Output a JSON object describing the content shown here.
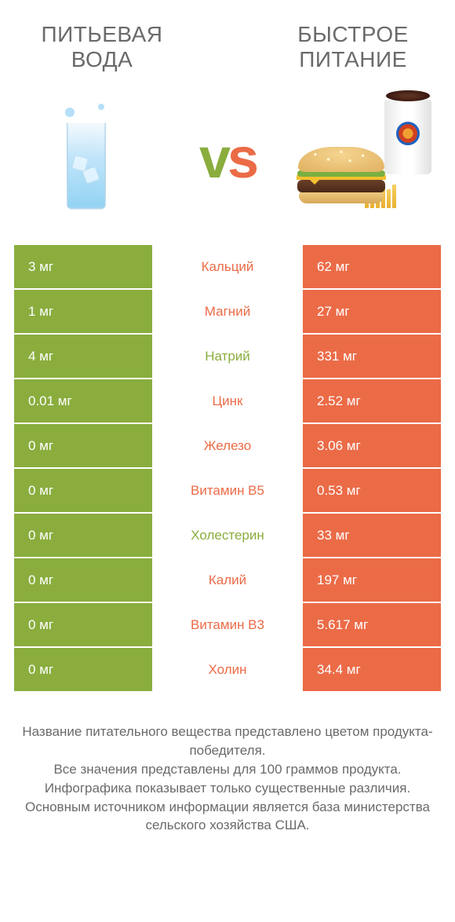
{
  "colors": {
    "green": "#8aad3e",
    "orange": "#eb6b47",
    "text_gray": "#6a6a6a",
    "row_gap": "#ffffff"
  },
  "header": {
    "left_title": "ПИТЬЕВАЯ ВОДА",
    "right_title": "БЫСТРОЕ ПИТАНИЕ",
    "vs_label": "vs"
  },
  "table": {
    "rows": [
      {
        "left": "3 мг",
        "label": "Кальций",
        "right": "62 мг",
        "winner": "right"
      },
      {
        "left": "1 мг",
        "label": "Магний",
        "right": "27 мг",
        "winner": "right"
      },
      {
        "left": "4 мг",
        "label": "Натрий",
        "right": "331 мг",
        "winner": "left"
      },
      {
        "left": "0.01 мг",
        "label": "Цинк",
        "right": "2.52 мг",
        "winner": "right"
      },
      {
        "left": "0 мг",
        "label": "Железо",
        "right": "3.06 мг",
        "winner": "right"
      },
      {
        "left": "0 мг",
        "label": "Витамин B5",
        "right": "0.53 мг",
        "winner": "right"
      },
      {
        "left": "0 мг",
        "label": "Холестерин",
        "right": "33 мг",
        "winner": "left"
      },
      {
        "left": "0 мг",
        "label": "Калий",
        "right": "197 мг",
        "winner": "right"
      },
      {
        "left": "0 мг",
        "label": "Витамин B3",
        "right": "5.617 мг",
        "winner": "right"
      },
      {
        "left": "0 мг",
        "label": "Холин",
        "right": "34.4 мг",
        "winner": "right"
      }
    ]
  },
  "footer": {
    "line1": "Название питательного вещества представлено цветом продукта-победителя.",
    "line2": "Все значения представлены для 100 граммов продукта.",
    "line3": "Инфографика показывает только существенные различия.",
    "line4": "Основным источником информации является база министерства сельского хозяйства США."
  }
}
